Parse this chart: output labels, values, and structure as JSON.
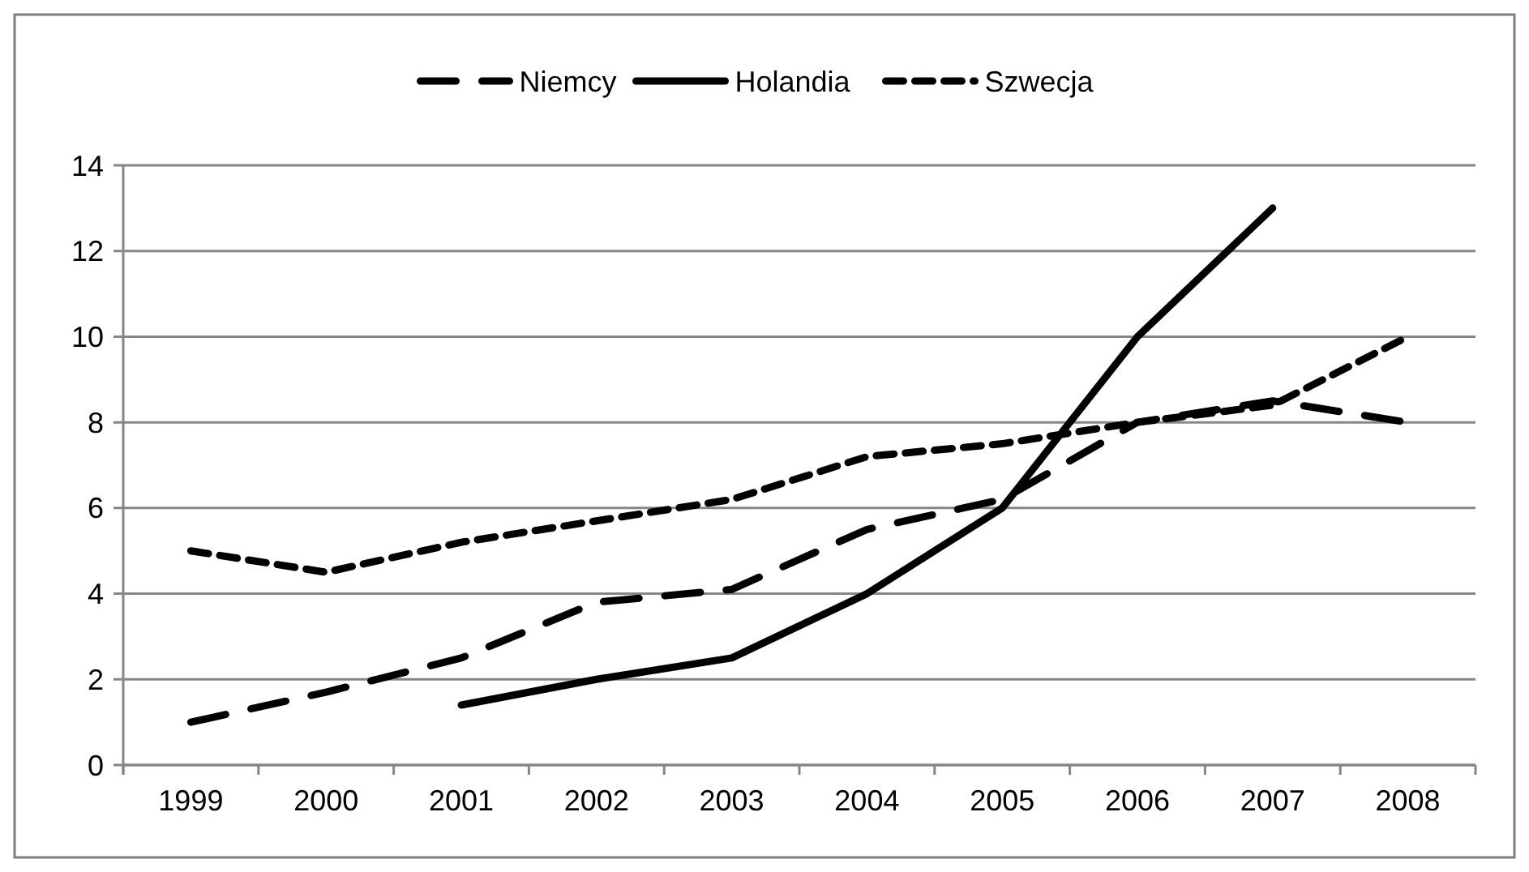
{
  "chart_data": {
    "type": "line",
    "categories": [
      "1999",
      "2000",
      "2001",
      "2002",
      "2003",
      "2004",
      "2005",
      "2006",
      "2007",
      "2008"
    ],
    "series": [
      {
        "name": "Niemcy",
        "color": "#000000",
        "line_style": "dashed",
        "values": [
          1.0,
          1.7,
          2.5,
          3.8,
          4.1,
          5.5,
          6.2,
          8.0,
          8.5,
          8.0
        ]
      },
      {
        "name": "Holandia",
        "color": "#000000",
        "line_style": "solid",
        "values": [
          null,
          null,
          1.4,
          2.0,
          2.5,
          4.0,
          6.0,
          10.0,
          13.0,
          null
        ]
      },
      {
        "name": "Szwecja",
        "color": "#000000",
        "line_style": "dotted",
        "values": [
          5.0,
          4.5,
          5.2,
          5.7,
          6.2,
          7.2,
          7.5,
          8.0,
          8.4,
          10.0
        ]
      }
    ],
    "ylim": [
      0,
      14
    ],
    "yticks": [
      0,
      2,
      4,
      6,
      8,
      10,
      12,
      14
    ],
    "grid": "y",
    "legend": "top",
    "marker": "none"
  }
}
